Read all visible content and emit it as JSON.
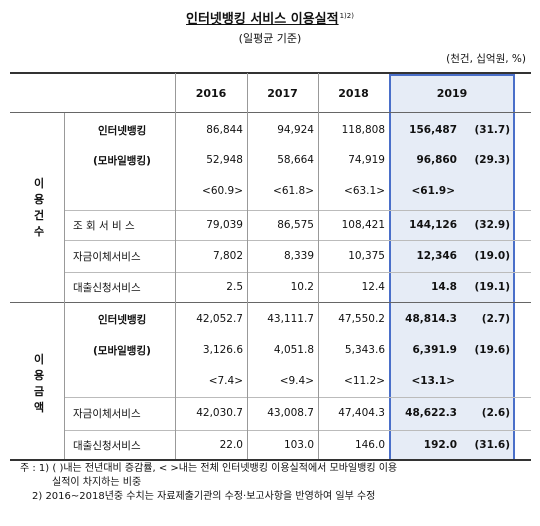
{
  "title": "인터넷뱅킹 서비스 이용실적",
  "title_sup": "1)2)",
  "subtitle": "(일평균 기준)",
  "unit": "(천건, 십억원, %)",
  "years": [
    "2016",
    "2017",
    "2018",
    "2019"
  ],
  "groups": {
    "count": "이용건수",
    "amount": "이용금액"
  },
  "rows": [
    {
      "label": "인터넷뱅킹",
      "v2016": "86,844",
      "v2017": "94,924",
      "v2018": "118,808",
      "v2019": "156,487",
      "rate": "(31.7)"
    },
    {
      "label": "(모바일뱅킹)",
      "v2016": "52,948",
      "v2017": "58,664",
      "v2018": "74,919",
      "v2019": "96,860",
      "rate": "(29.3)"
    },
    {
      "label": "",
      "v2016": "<60.9>",
      "v2017": "<61.8>",
      "v2018": "<63.1>",
      "v2019": "<61.9>",
      "rate": ""
    },
    {
      "label": "조 회 서 비 스",
      "v2016": "79,039",
      "v2017": "86,575",
      "v2018": "108,421",
      "v2019": "144,126",
      "rate": "(32.9)"
    },
    {
      "label": "자금이체서비스",
      "v2016": "7,802",
      "v2017": "8,339",
      "v2018": "10,375",
      "v2019": "12,346",
      "rate": "(19.0)"
    },
    {
      "label": "대출신청서비스",
      "v2016": "2.5",
      "v2017": "10.2",
      "v2018": "12.4",
      "v2019": "14.8",
      "rate": "(19.1)"
    },
    {
      "label": "인터넷뱅킹",
      "v2016": "42,052.7",
      "v2017": "43,111.7",
      "v2018": "47,550.2",
      "v2019": "48,814.3",
      "rate": "(2.7)"
    },
    {
      "label": "(모바일뱅킹)",
      "v2016": "3,126.6",
      "v2017": "4,051.8",
      "v2018": "5,343.6",
      "v2019": "6,391.9",
      "rate": "(19.6)"
    },
    {
      "label": "",
      "v2016": "<7.4>",
      "v2017": "<9.4>",
      "v2018": "<11.2>",
      "v2019": "<13.1>",
      "rate": ""
    },
    {
      "label": "자금이체서비스",
      "v2016": "42,030.7",
      "v2017": "43,008.7",
      "v2018": "47,404.3",
      "v2019": "48,622.3",
      "rate": "(2.6)"
    },
    {
      "label": "대출신청서비스",
      "v2016": "22.0",
      "v2017": "103.0",
      "v2018": "146.0",
      "v2019": "192.0",
      "rate": "(31.6)"
    }
  ],
  "notes": {
    "n1_line1": "주 : 1) ( )내는 전년대비 증감률, < >내는 전체 인터넷뱅킹 이용실적에서 모바일뱅킹 이용",
    "n1_line2": "실적이 차지하는 비중",
    "n2": "2) 2016~2018년중 수치는 자료제출기관의 수정·보고사항을 반영하여 일부 수정"
  }
}
